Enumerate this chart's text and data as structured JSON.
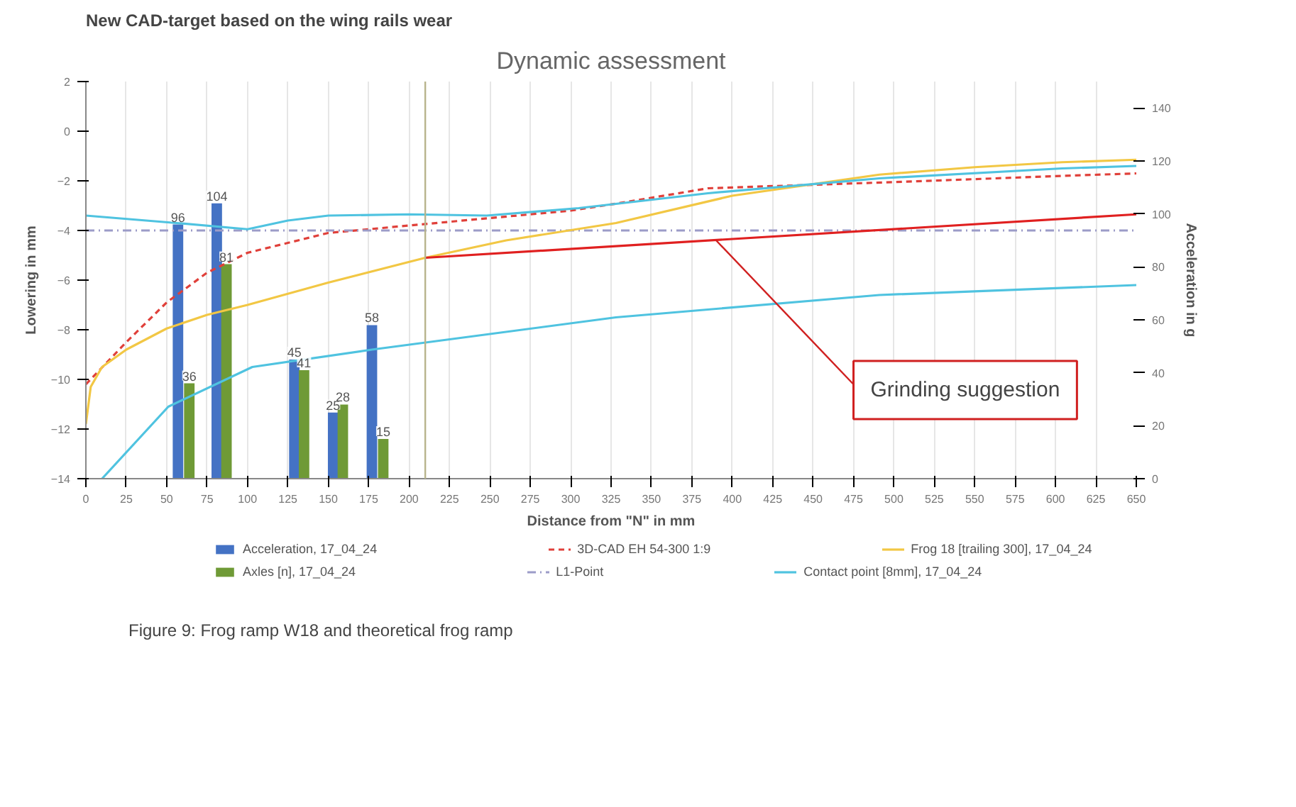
{
  "chart_data": {
    "type": "line",
    "title": "Dynamic assessment",
    "xlabel": "Distance from \"N\" in mm",
    "ylabel": "Lowering in mm",
    "y2label": "Acceleration in g",
    "xlim": [
      0,
      650
    ],
    "xticks": [
      0,
      25,
      50,
      75,
      100,
      125,
      150,
      175,
      200,
      225,
      250,
      275,
      300,
      325,
      350,
      375,
      400,
      425,
      450,
      475,
      500,
      525,
      550,
      575,
      600,
      625,
      650
    ],
    "ylim": [
      -14,
      2
    ],
    "yticks": [
      2,
      0,
      -2,
      -4,
      -6,
      -8,
      -10,
      -12,
      -14
    ],
    "y2lim": [
      0,
      150
    ],
    "y2ticks": [
      0,
      20,
      40,
      60,
      80,
      100,
      120,
      140
    ],
    "grid": "x",
    "legend": "bottom",
    "series": [
      {
        "name": "Acceleration, 17_04_24",
        "type": "bar",
        "axis": "y2",
        "color": "#4472c4",
        "x": [
          57,
          81,
          129,
          153,
          177
        ],
        "values": [
          96,
          104,
          45,
          25,
          58
        ],
        "value_labels": [
          "96",
          "104",
          "45",
          "25",
          "58"
        ]
      },
      {
        "name": "Axles [n], 17_04_24",
        "type": "bar",
        "axis": "y2",
        "color": "#6f9a36",
        "x": [
          64,
          87,
          135,
          159,
          184
        ],
        "values": [
          36,
          81,
          41,
          28,
          15
        ],
        "value_labels": [
          "36",
          "81",
          "41",
          "28",
          "15"
        ]
      },
      {
        "name": "3D-CAD EH 54-300 1:9",
        "type": "line",
        "line_style": "dashed",
        "color": "#e0403a",
        "x": [
          0,
          25,
          50,
          75,
          100,
          150,
          200,
          300,
          330,
          385,
          500,
          605,
          650
        ],
        "values": [
          -10.2,
          -8.5,
          -6.9,
          -5.7,
          -4.9,
          -4.1,
          -3.8,
          -3.2,
          -2.9,
          -2.3,
          -2.05,
          -1.8,
          -1.7
        ]
      },
      {
        "name": "L1-Point",
        "type": "line",
        "line_style": "dashdot",
        "color": "#9c9cc8",
        "x": [
          0,
          650
        ],
        "values": [
          -4,
          -4
        ]
      },
      {
        "name": "Frog 18 [trailing 300], 17_04_24",
        "type": "line",
        "color": "#f2c744",
        "x": [
          0,
          3,
          10,
          25,
          50,
          75,
          100,
          150,
          210,
          260,
          328,
          400,
          491,
          550,
          604,
          650
        ],
        "values": [
          -11.8,
          -10.3,
          -9.5,
          -8.8,
          -7.95,
          -7.4,
          -7.0,
          -6.1,
          -5.1,
          -4.4,
          -3.7,
          -2.6,
          -1.75,
          -1.45,
          -1.25,
          -1.15
        ]
      },
      {
        "name": "Contact point [8mm], 17_04_24",
        "type": "line",
        "color": "#4fc3e0",
        "x": [
          0,
          56,
          100,
          125,
          150,
          200,
          248,
          305,
          385,
          491,
          604,
          650
        ],
        "values": [
          -3.4,
          -3.7,
          -3.95,
          -3.6,
          -3.4,
          -3.35,
          -3.4,
          -3.1,
          -2.5,
          -1.9,
          -1.5,
          -1.4
        ]
      },
      {
        "color": "#4fc3e0",
        "x": [
          10,
          51,
          103,
          177,
          328,
          491,
          650
        ],
        "values": [
          -14,
          -11.1,
          -9.5,
          -8.8,
          -7.5,
          -6.6,
          -6.2
        ]
      },
      {
        "type": "line",
        "color": "#e02020",
        "x": [
          210,
          650
        ],
        "values": [
          -5.1,
          -3.35
        ]
      }
    ],
    "ref_lines": [
      {
        "axis": "x",
        "value": 210,
        "color": "#b8b48c"
      }
    ],
    "annotations": [
      "New CAD-target based on the wing rails wear",
      {
        "text": "Grinding suggestion",
        "x": 390,
        "y": -4.4
      },
      "Figure 9: Frog ramp W18 and theoretical frog ramp"
    ]
  }
}
